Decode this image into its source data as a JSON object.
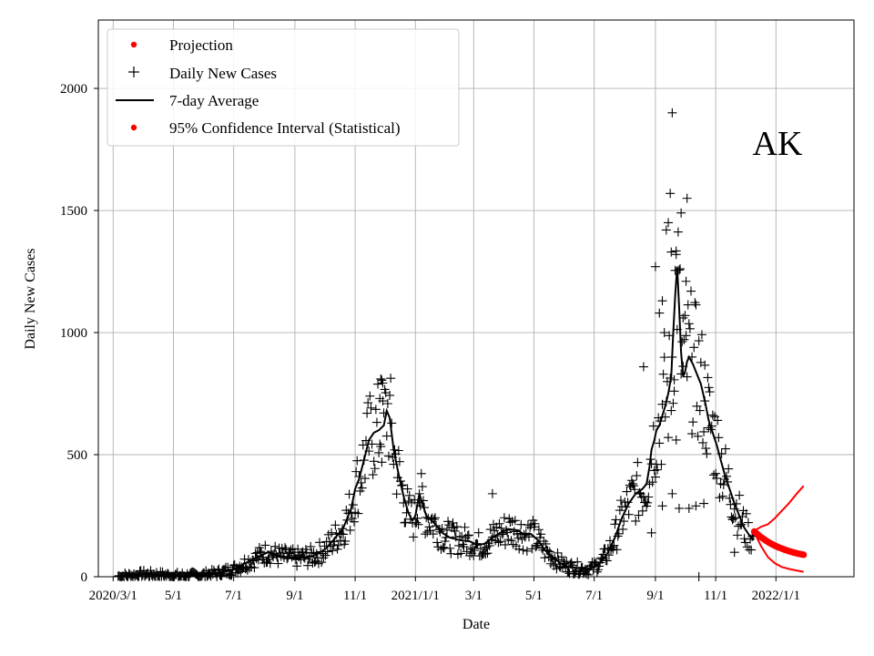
{
  "chart_data": {
    "type": "scatter",
    "state_label": "AK",
    "xlabel": "Date",
    "ylabel": "Daily New Cases",
    "xlim": [
      "2020-02-15",
      "2022-03-21"
    ],
    "ylim": [
      0,
      2280
    ],
    "grid": true,
    "legend_position": "top-left",
    "x_ticks": [
      {
        "date": "2020-03-01",
        "label": "2020/3/1"
      },
      {
        "date": "2020-05-01",
        "label": "5/1"
      },
      {
        "date": "2020-07-01",
        "label": "7/1"
      },
      {
        "date": "2020-09-01",
        "label": "9/1"
      },
      {
        "date": "2020-11-01",
        "label": "11/1"
      },
      {
        "date": "2021-01-01",
        "label": "2021/1/1"
      },
      {
        "date": "2021-03-01",
        "label": "3/1"
      },
      {
        "date": "2021-05-01",
        "label": "5/1"
      },
      {
        "date": "2021-07-01",
        "label": "7/1"
      },
      {
        "date": "2021-09-01",
        "label": "9/1"
      },
      {
        "date": "2021-11-01",
        "label": "11/1"
      },
      {
        "date": "2022-01-01",
        "label": "2022/1/1"
      }
    ],
    "y_ticks": [
      0,
      500,
      1000,
      1500,
      2000
    ],
    "legend": [
      {
        "label": "Projection",
        "marker": "dot",
        "color": "#ff0000"
      },
      {
        "label": "Daily New Cases",
        "marker": "plus",
        "color": "#000000"
      },
      {
        "label": "7-day Average",
        "marker": "line",
        "color": "#000000"
      },
      {
        "label": "95% Confidence Interval (Statistical)",
        "marker": "dot",
        "color": "#ff0000"
      }
    ],
    "series": [
      {
        "name": "7-day Average",
        "color": "#000000",
        "points": [
          [
            "2020-03-06",
            2
          ],
          [
            "2020-03-20",
            5
          ],
          [
            "2020-04-01",
            10
          ],
          [
            "2020-04-15",
            8
          ],
          [
            "2020-05-01",
            4
          ],
          [
            "2020-05-20",
            5
          ],
          [
            "2020-06-01",
            8
          ],
          [
            "2020-06-15",
            15
          ],
          [
            "2020-07-01",
            30
          ],
          [
            "2020-07-10",
            50
          ],
          [
            "2020-07-20",
            70
          ],
          [
            "2020-07-30",
            90
          ],
          [
            "2020-08-05",
            100
          ],
          [
            "2020-08-15",
            85
          ],
          [
            "2020-08-25",
            80
          ],
          [
            "2020-09-01",
            75
          ],
          [
            "2020-09-10",
            80
          ],
          [
            "2020-09-20",
            85
          ],
          [
            "2020-10-01",
            110
          ],
          [
            "2020-10-10",
            150
          ],
          [
            "2020-10-20",
            200
          ],
          [
            "2020-10-28",
            280
          ],
          [
            "2020-11-01",
            360
          ],
          [
            "2020-11-05",
            400
          ],
          [
            "2020-11-10",
            480
          ],
          [
            "2020-11-15",
            560
          ],
          [
            "2020-11-20",
            590
          ],
          [
            "2020-11-25",
            600
          ],
          [
            "2020-11-30",
            620
          ],
          [
            "2020-12-03",
            680
          ],
          [
            "2020-12-06",
            650
          ],
          [
            "2020-12-10",
            520
          ],
          [
            "2020-12-15",
            420
          ],
          [
            "2020-12-20",
            330
          ],
          [
            "2020-12-25",
            260
          ],
          [
            "2020-12-29",
            230
          ],
          [
            "2021-01-01",
            250
          ],
          [
            "2021-01-05",
            340
          ],
          [
            "2021-01-08",
            300
          ],
          [
            "2021-01-12",
            250
          ],
          [
            "2021-01-20",
            220
          ],
          [
            "2021-01-28",
            180
          ],
          [
            "2021-02-05",
            160
          ],
          [
            "2021-02-15",
            150
          ],
          [
            "2021-02-25",
            145
          ],
          [
            "2021-03-05",
            130
          ],
          [
            "2021-03-12",
            135
          ],
          [
            "2021-03-20",
            160
          ],
          [
            "2021-03-28",
            180
          ],
          [
            "2021-04-05",
            195
          ],
          [
            "2021-04-15",
            190
          ],
          [
            "2021-04-22",
            170
          ],
          [
            "2021-04-28",
            175
          ],
          [
            "2021-05-05",
            150
          ],
          [
            "2021-05-12",
            110
          ],
          [
            "2021-05-20",
            80
          ],
          [
            "2021-05-28",
            55
          ],
          [
            "2021-06-05",
            40
          ],
          [
            "2021-06-15",
            35
          ],
          [
            "2021-06-25",
            30
          ],
          [
            "2021-07-01",
            40
          ],
          [
            "2021-07-08",
            60
          ],
          [
            "2021-07-15",
            100
          ],
          [
            "2021-07-22",
            160
          ],
          [
            "2021-07-29",
            240
          ],
          [
            "2021-08-05",
            300
          ],
          [
            "2021-08-12",
            340
          ],
          [
            "2021-08-19",
            360
          ],
          [
            "2021-08-23",
            380
          ],
          [
            "2021-08-26",
            450
          ],
          [
            "2021-08-28",
            520
          ],
          [
            "2021-08-31",
            560
          ],
          [
            "2021-09-02",
            600
          ],
          [
            "2021-09-05",
            620
          ],
          [
            "2021-09-08",
            660
          ],
          [
            "2021-09-11",
            700
          ],
          [
            "2021-09-14",
            750
          ],
          [
            "2021-09-17",
            820
          ],
          [
            "2021-09-19",
            1000
          ],
          [
            "2021-09-21",
            1150
          ],
          [
            "2021-09-23",
            1270
          ],
          [
            "2021-09-25",
            1100
          ],
          [
            "2021-09-27",
            920
          ],
          [
            "2021-09-29",
            820
          ],
          [
            "2021-10-01",
            840
          ],
          [
            "2021-10-03",
            880
          ],
          [
            "2021-10-05",
            900
          ],
          [
            "2021-10-09",
            870
          ],
          [
            "2021-10-13",
            830
          ],
          [
            "2021-10-17",
            790
          ],
          [
            "2021-10-21",
            720
          ],
          [
            "2021-10-25",
            640
          ],
          [
            "2021-10-29",
            590
          ],
          [
            "2021-11-02",
            540
          ],
          [
            "2021-11-06",
            480
          ],
          [
            "2021-11-10",
            420
          ],
          [
            "2021-11-15",
            360
          ],
          [
            "2021-11-20",
            300
          ],
          [
            "2021-11-25",
            250
          ],
          [
            "2021-11-30",
            200
          ],
          [
            "2021-12-05",
            170
          ],
          [
            "2021-12-09",
            150
          ]
        ]
      },
      {
        "name": "Projection",
        "color": "#ff0000",
        "points": [
          [
            "2021-12-10",
            185
          ],
          [
            "2021-12-15",
            168
          ],
          [
            "2021-12-20",
            153
          ],
          [
            "2021-12-25",
            140
          ],
          [
            "2021-12-30",
            129
          ],
          [
            "2022-01-04",
            120
          ],
          [
            "2022-01-09",
            112
          ],
          [
            "2022-01-14",
            105
          ],
          [
            "2022-01-19",
            99
          ],
          [
            "2022-01-24",
            94
          ],
          [
            "2022-01-29",
            90
          ]
        ]
      },
      {
        "name": "95% Confidence Interval (Statistical)",
        "color": "#ff0000",
        "upper": [
          [
            "2021-12-10",
            188
          ],
          [
            "2021-12-17",
            205
          ],
          [
            "2021-12-24",
            215
          ],
          [
            "2021-12-31",
            240
          ],
          [
            "2022-01-07",
            270
          ],
          [
            "2022-01-14",
            300
          ],
          [
            "2022-01-21",
            335
          ],
          [
            "2022-01-29",
            372
          ]
        ],
        "lower": [
          [
            "2021-12-10",
            182
          ],
          [
            "2021-12-17",
            125
          ],
          [
            "2021-12-24",
            80
          ],
          [
            "2021-12-31",
            55
          ],
          [
            "2022-01-07",
            40
          ],
          [
            "2022-01-14",
            32
          ],
          [
            "2022-01-21",
            26
          ],
          [
            "2022-01-29",
            20
          ]
        ]
      }
    ],
    "daily_outliers": [
      [
        "2020-11-27",
        810
      ],
      [
        "2020-11-28",
        805
      ],
      [
        "2020-11-26",
        730
      ],
      [
        "2020-11-29",
        720
      ],
      [
        "2021-01-05",
        340
      ],
      [
        "2021-03-20",
        340
      ],
      [
        "2021-08-20",
        860
      ],
      [
        "2021-09-01",
        1270
      ],
      [
        "2021-09-05",
        1080
      ],
      [
        "2021-09-08",
        1130
      ],
      [
        "2021-09-12",
        1420
      ],
      [
        "2021-09-14",
        1450
      ],
      [
        "2021-09-16",
        1570
      ],
      [
        "2021-09-17",
        1330
      ],
      [
        "2021-09-18",
        1900
      ],
      [
        "2021-09-22",
        1320
      ],
      [
        "2021-09-27",
        1490
      ],
      [
        "2021-10-03",
        1550
      ],
      [
        "2021-10-02",
        1210
      ],
      [
        "2021-10-08",
        900
      ],
      [
        "2021-09-29",
        1060
      ],
      [
        "2021-09-20",
        760
      ],
      [
        "2021-09-10",
        1000
      ],
      [
        "2021-09-22",
        560
      ],
      [
        "2021-09-18",
        340
      ],
      [
        "2021-09-25",
        280
      ],
      [
        "2021-10-05",
        280
      ],
      [
        "2021-10-12",
        290
      ],
      [
        "2021-10-20",
        300
      ],
      [
        "2021-10-15",
        0
      ],
      [
        "2021-09-08",
        290
      ],
      [
        "2021-08-28",
        180
      ],
      [
        "2021-10-25",
        610
      ],
      [
        "2021-10-21",
        720
      ],
      [
        "2021-11-20",
        100
      ]
    ]
  }
}
